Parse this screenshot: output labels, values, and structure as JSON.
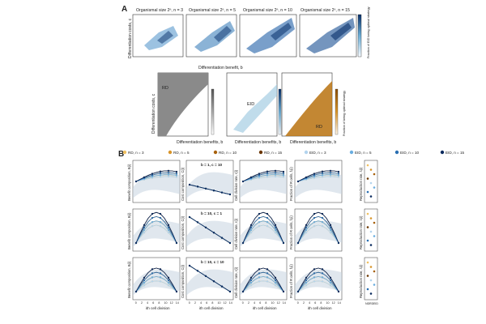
{
  "figure": {
    "panel_a_label": "A",
    "panel_b_label": "B"
  },
  "panel_a": {
    "top_titles": [
      "Organismal size 2ⁿ, n = 3",
      "Organismal size 2ⁿ, n = 5",
      "Organismal size 2ⁿ, n = 10",
      "Organismal size 2ⁿ, n = 15"
    ],
    "top_ylabel": "Differentiation costs, c",
    "top_xlabel": "Differentiation benefit, b",
    "top_tick_labels": [
      "10⁻¹",
      "10⁰",
      "10¹",
      "10²"
    ],
    "top_colorbar_label": "Fraction of EID being optimal strategy",
    "top_colorbar_ticks": [
      "0.0",
      "0.2",
      "0.4",
      "0.6",
      "0.8",
      "1.0"
    ],
    "mid_ylabel": "Differentiation costs, c",
    "mid_xlabel": "Differentiation benefits, b",
    "strategy_labels": [
      "RD",
      "EID",
      "RD"
    ],
    "mid_colorbar_label": "Fraction of being optimal strategy",
    "mid_colorbar_ticks": [
      "0.0",
      "0.2",
      "0.4",
      "0.6",
      "0.8",
      "1.0"
    ],
    "colors": {
      "blue_dark": "#08306b",
      "blue_mid": "#2171b5",
      "blue_light": "#c6dbef",
      "orange": "#b8720f",
      "gray": "#7a7a7a"
    }
  },
  "panel_b": {
    "legend": [
      {
        "label": "RD, n = 3",
        "color": "#f0c060"
      },
      {
        "label": "RD, n = 5",
        "color": "#d9952a"
      },
      {
        "label": "RD, n = 10",
        "color": "#a8620d"
      },
      {
        "label": "RD, n = 15",
        "color": "#6b3600"
      },
      {
        "label": "EID, n = 3",
        "color": "#b3d4ee"
      },
      {
        "label": "EID, n = 5",
        "color": "#6aaee0"
      },
      {
        "label": "EID, n = 10",
        "color": "#2a6fb2"
      },
      {
        "label": "EID, n = 15",
        "color": "#0a2a5e"
      }
    ],
    "row_params": [
      "b = 1, c = 10",
      "b = 10, c = 1",
      "b = 10, c = 10"
    ],
    "col_ylabels": [
      "Benefit composition, B(i)",
      "Cost composition, C(i)",
      "Cell division rate, r(i)",
      "Fraction of R cells, fᵣ(i)",
      "Reproduction rate, λ(i)"
    ],
    "xlabel": "ith cell division",
    "x_ticks": [
      "0",
      "2",
      "4",
      "6",
      "8",
      "10",
      "12",
      "14"
    ],
    "nd_labels": [
      "ND",
      "RD",
      "EID"
    ],
    "nd_tag": "ND"
  }
}
